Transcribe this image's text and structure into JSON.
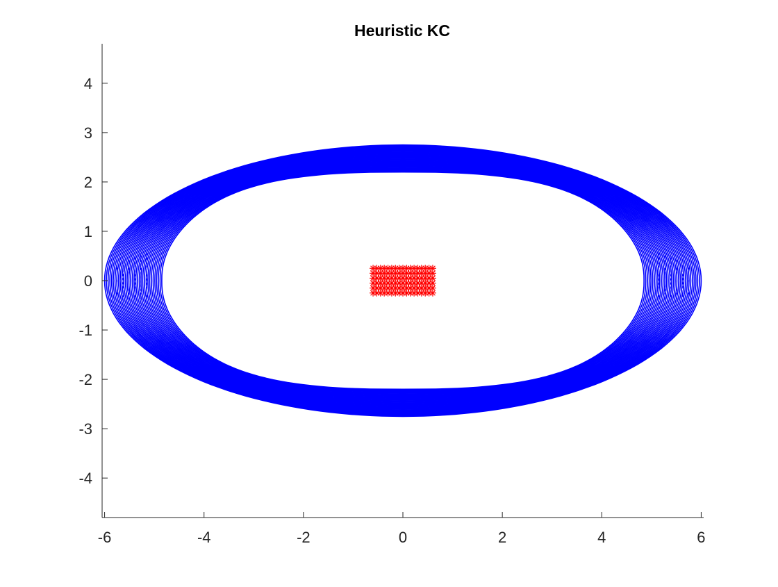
{
  "chart_data": {
    "type": "scatter",
    "title": "Heuristic KC",
    "xlabel": "",
    "ylabel": "",
    "xlim": [
      -6.05,
      6.05
    ],
    "ylim": [
      -4.8,
      4.8
    ],
    "xticks": [
      -6,
      -4,
      -2,
      0,
      2,
      4,
      6
    ],
    "yticks": [
      -4,
      -3,
      -2,
      -1,
      0,
      1,
      2,
      3,
      4
    ],
    "grid": false,
    "legend": "none",
    "series": [
      {
        "kind": "closed-curves",
        "color": "#0000ff",
        "curve_count": 34,
        "outer_extent": {
          "x_max": 6.0,
          "y_max": 2.75
        },
        "inner_extent": {
          "x_max": 4.85,
          "y_max": 2.2
        }
      },
      {
        "kind": "markers",
        "marker": "*",
        "color": "#ff0000",
        "x_range": [
          -0.6,
          0.6
        ],
        "y_range": [
          -0.25,
          0.25
        ]
      }
    ]
  }
}
